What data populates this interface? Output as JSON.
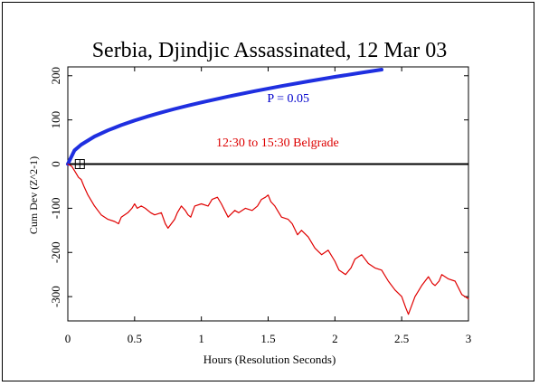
{
  "chart_data": {
    "type": "line",
    "title": "Serbia, Djindjic Assassinated, 12 Mar 03",
    "xlabel": "Hours (Resolution Seconds)",
    "ylabel": "Cum Dev (Z^2-1)",
    "xlim": [
      0,
      3
    ],
    "ylim": [
      -355,
      220
    ],
    "xticks": [
      0,
      0.5,
      1,
      1.5,
      2,
      2.5,
      3
    ],
    "xtick_labels": [
      "0",
      "0.5",
      "1",
      "1.5",
      "2",
      "2.5",
      "3"
    ],
    "yticks": [
      200,
      100,
      0,
      -100,
      -200,
      -300
    ],
    "ytick_labels": [
      "200",
      "100",
      "0",
      "-100",
      "-200",
      "-300"
    ],
    "grid": false,
    "annotations": [
      {
        "text": "P = 0.05",
        "color": "#0000cc",
        "x": 1.65,
        "y": 140
      },
      {
        "text": "12:30 to 15:30 Belgrade",
        "color": "#dd0000",
        "x": 1.57,
        "y": 40
      }
    ],
    "series": [
      {
        "role": "significance envelope",
        "color": "#1f2fe0",
        "formula": "1.645 * sqrt(2 * 3600 * x)",
        "x": [
          0,
          0.05,
          0.1,
          0.2,
          0.3,
          0.4,
          0.5,
          0.6,
          0.7,
          0.8,
          0.9,
          1.0,
          1.2,
          1.4,
          1.6,
          1.8,
          2.0,
          2.2,
          2.35
        ],
        "values": [
          0,
          31.2,
          44.1,
          62.4,
          76.4,
          88.3,
          98.7,
          108.1,
          116.8,
          124.8,
          132.4,
          139.6,
          152.9,
          165.2,
          176.6,
          187.2,
          197.4,
          207.0,
          213.9
        ]
      },
      {
        "role": "cumulative deviation",
        "color": "#e00000",
        "x": [
          0,
          0.03,
          0.06,
          0.08,
          0.1,
          0.12,
          0.15,
          0.18,
          0.2,
          0.25,
          0.3,
          0.35,
          0.38,
          0.4,
          0.45,
          0.48,
          0.5,
          0.52,
          0.55,
          0.58,
          0.62,
          0.65,
          0.7,
          0.73,
          0.75,
          0.8,
          0.82,
          0.85,
          0.88,
          0.9,
          0.92,
          0.95,
          1.0,
          1.05,
          1.08,
          1.12,
          1.15,
          1.2,
          1.25,
          1.28,
          1.33,
          1.38,
          1.42,
          1.45,
          1.48,
          1.5,
          1.52,
          1.55,
          1.6,
          1.65,
          1.68,
          1.72,
          1.75,
          1.8,
          1.85,
          1.9,
          1.95,
          2.0,
          2.03,
          2.08,
          2.12,
          2.15,
          2.2,
          2.25,
          2.3,
          2.35,
          2.4,
          2.45,
          2.5,
          2.53,
          2.55,
          2.6,
          2.62,
          2.65,
          2.7,
          2.73,
          2.75,
          2.78,
          2.8,
          2.85,
          2.9,
          2.95,
          3.0
        ],
        "values": [
          0,
          -5,
          -20,
          -30,
          -35,
          -50,
          -70,
          -85,
          -95,
          -115,
          -125,
          -130,
          -135,
          -120,
          -110,
          -100,
          -90,
          -100,
          -95,
          -100,
          -110,
          -115,
          -110,
          -135,
          -145,
          -125,
          -110,
          -95,
          -105,
          -115,
          -120,
          -95,
          -90,
          -95,
          -80,
          -75,
          -90,
          -120,
          -105,
          -110,
          -100,
          -105,
          -95,
          -80,
          -75,
          -70,
          -85,
          -95,
          -120,
          -125,
          -135,
          -160,
          -150,
          -165,
          -190,
          -205,
          -195,
          -220,
          -240,
          -250,
          -235,
          -215,
          -205,
          -225,
          -235,
          -240,
          -265,
          -285,
          -300,
          -325,
          -340,
          -300,
          -290,
          -275,
          -255,
          -270,
          -275,
          -265,
          -250,
          -260,
          -265,
          -295,
          -305
        ]
      }
    ]
  }
}
